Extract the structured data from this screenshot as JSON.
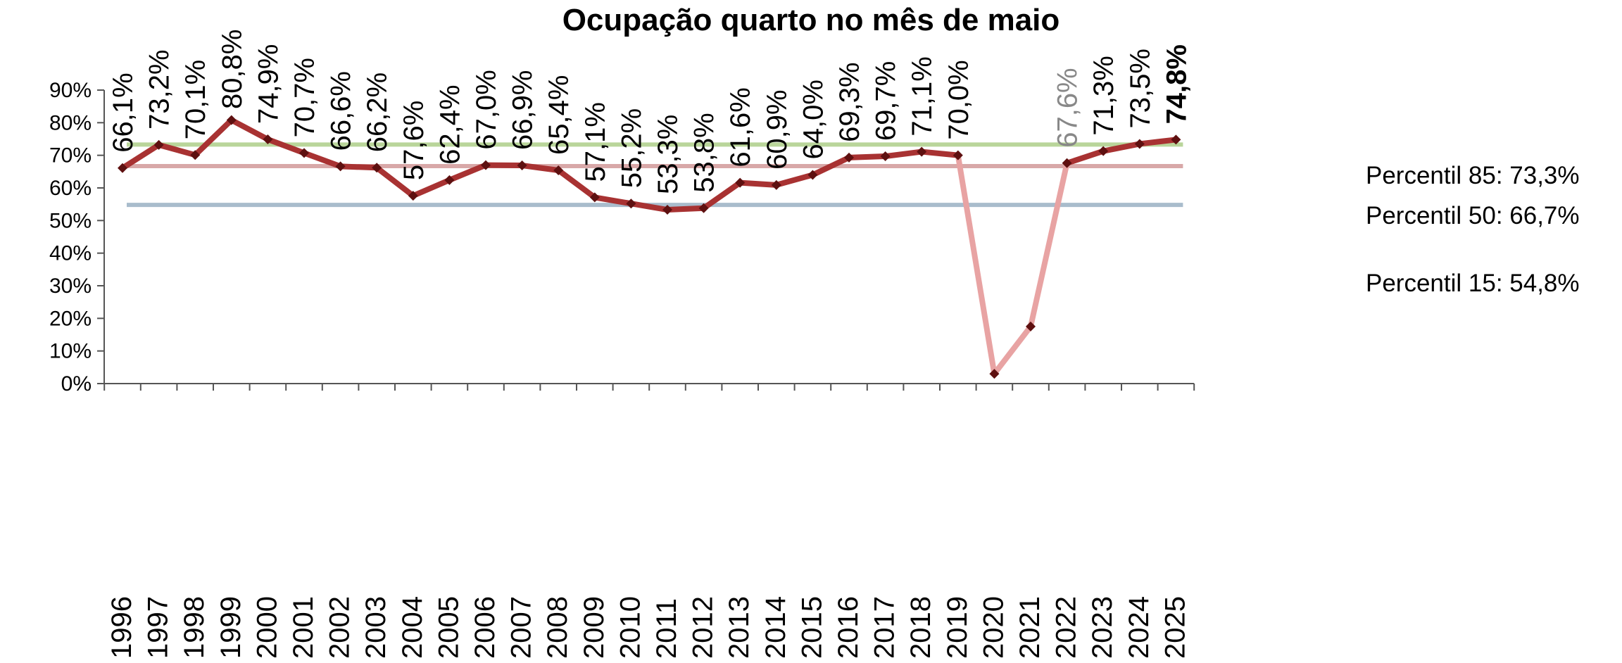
{
  "chart_data": {
    "type": "line",
    "title": "Ocupação quarto no mês de maio",
    "xlabel": "",
    "ylabel": "",
    "ylim": [
      0,
      90
    ],
    "yticks": [
      "0%",
      "10%",
      "20%",
      "30%",
      "40%",
      "50%",
      "60%",
      "70%",
      "80%",
      "90%"
    ],
    "grid": false,
    "legend": "none",
    "categories": [
      "1996",
      "1997",
      "1998",
      "1999",
      "2000",
      "2001",
      "2002",
      "2003",
      "2004",
      "2005",
      "2006",
      "2007",
      "2008",
      "2009",
      "2010",
      "2011",
      "2012",
      "2013",
      "2014",
      "2015",
      "2016",
      "2017",
      "2018",
      "2019",
      "2020",
      "2021",
      "2022",
      "2023",
      "2024",
      "2025"
    ],
    "series": [
      {
        "values": [
          66.1,
          73.2,
          70.1,
          80.8,
          74.9,
          70.7,
          66.6,
          66.2,
          57.6,
          62.4,
          67.0,
          66.9,
          65.4,
          57.1,
          55.2,
          53.3,
          53.8,
          61.6,
          60.9,
          64.0,
          69.3,
          69.7,
          71.1,
          70.0,
          3.0,
          17.5,
          67.6,
          71.3,
          73.5,
          74.8
        ],
        "data_labels": [
          "66,1%",
          "73,2%",
          "70,1%",
          "80,8%",
          "74,9%",
          "70,7%",
          "66,6%",
          "66,2%",
          "57,6%",
          "62,4%",
          "67,0%",
          "66,9%",
          "65,4%",
          "57,1%",
          "55,2%",
          "53,3%",
          "53,8%",
          "61,6%",
          "60,9%",
          "64,0%",
          "69,3%",
          "69,7%",
          "71,1%",
          "70,0%",
          "",
          "",
          "67,6%",
          "71,3%",
          "73,5%",
          "74,8%"
        ],
        "color": "#a83232",
        "faded_color": "#e8a3a3",
        "marker_color": "#5e1010"
      }
    ],
    "reference_lines": [
      {
        "label": "Percentil 85: 73,3%",
        "value": 73.3,
        "color": "#b9d59a"
      },
      {
        "label": "Percentil 50: 66,7%",
        "value": 66.7,
        "color": "#d8a8a8"
      },
      {
        "label": "Percentil 15: 54,8%",
        "value": 54.8,
        "color": "#a9bccc"
      }
    ]
  }
}
